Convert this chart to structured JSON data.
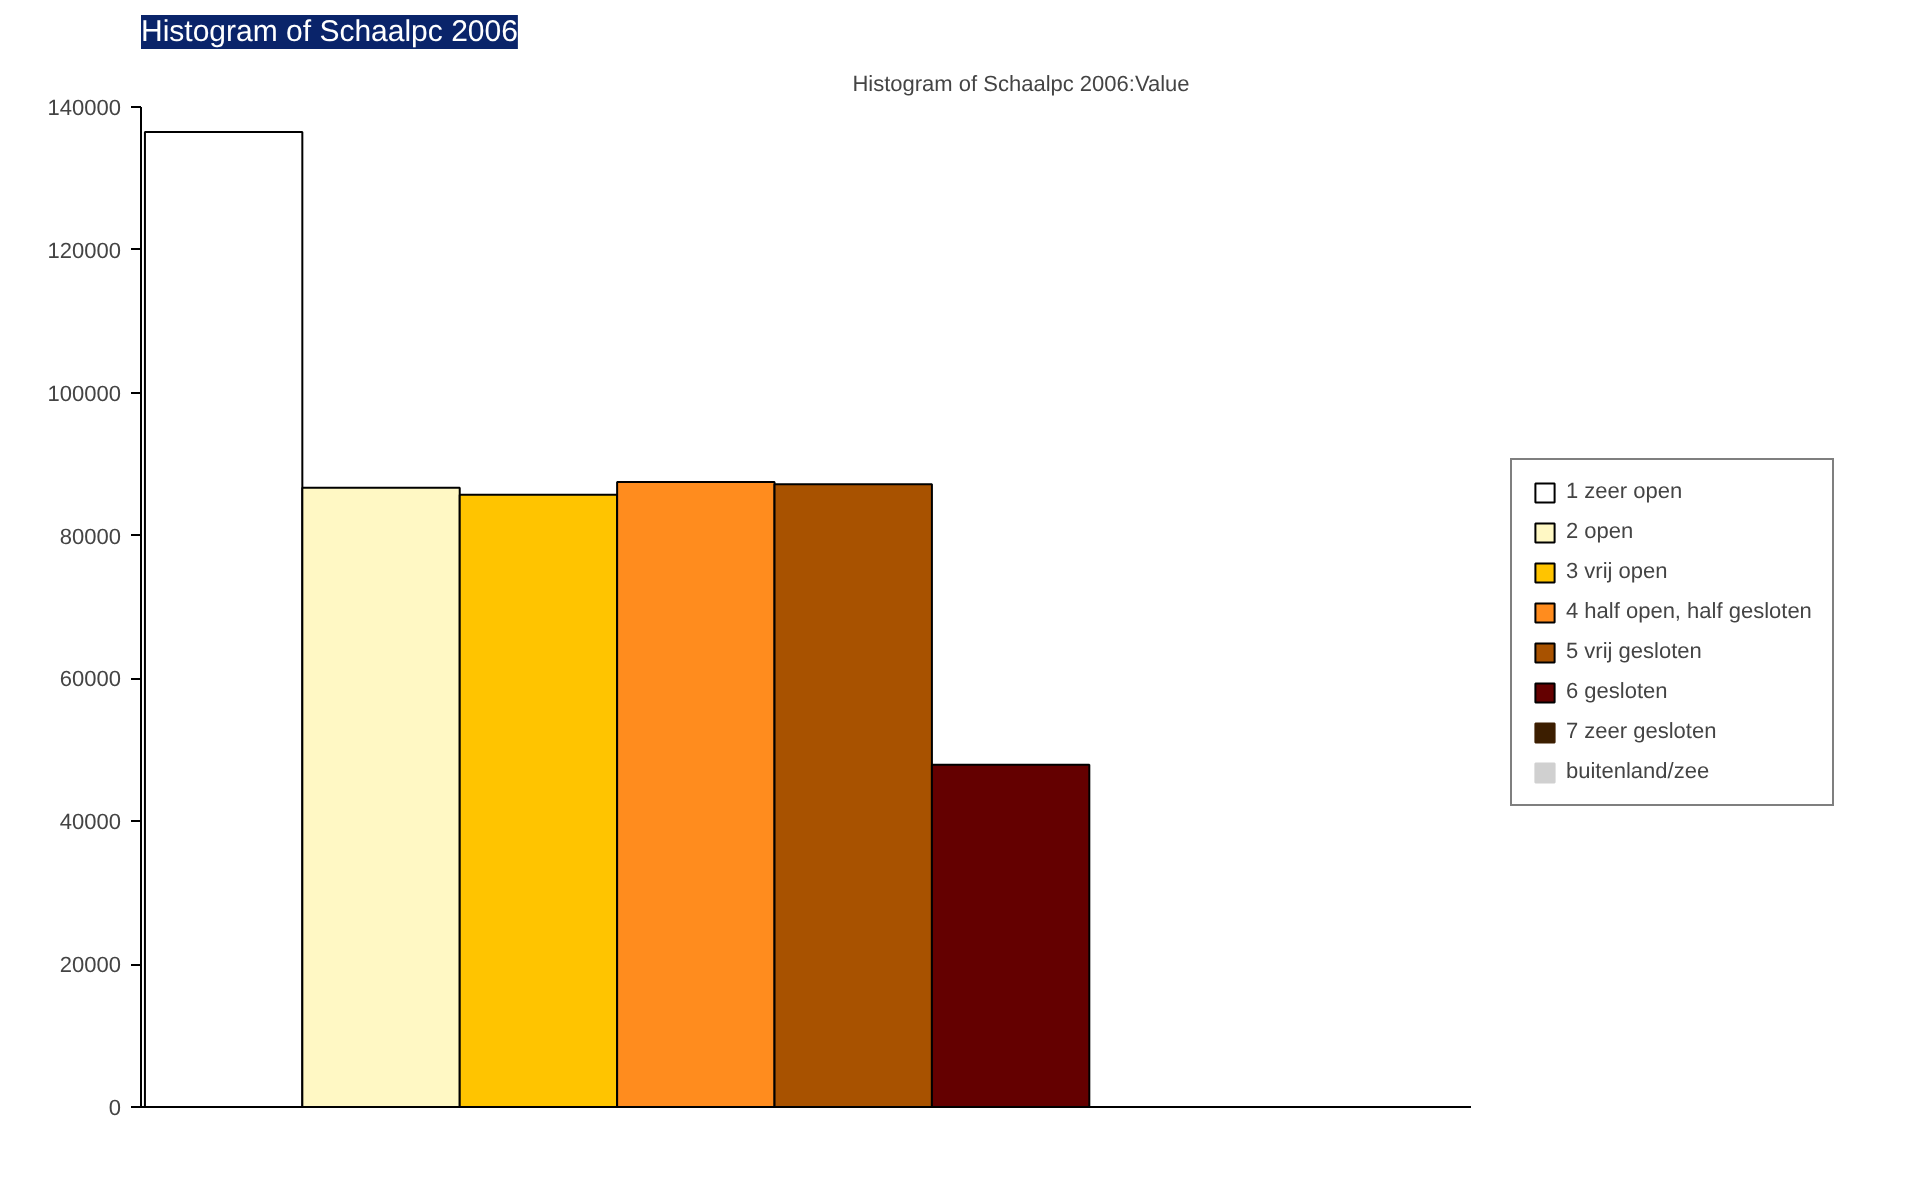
{
  "chart_data": {
    "type": "bar",
    "title": "Histogram of Schaalpc 2006",
    "subtitle": "Histogram of Schaalpc 2006:Value",
    "categories": [
      null
    ],
    "series": [
      {
        "name": "1 zeer open",
        "color": "#ffffff",
        "values": [
          136500
        ]
      },
      {
        "name": "2 open",
        "color": "#fff8c4",
        "values": [
          86700
        ]
      },
      {
        "name": "3 vrij open",
        "color": "#ffc400",
        "values": [
          85700
        ]
      },
      {
        "name": "4 half open, half gesloten",
        "color": "#ff8c1e",
        "values": [
          87500
        ]
      },
      {
        "name": "5 vrij gesloten",
        "color": "#a85200",
        "values": [
          87200
        ]
      },
      {
        "name": "6 gesloten",
        "color": "#640000",
        "values": [
          47900
        ]
      },
      {
        "name": "7 zeer gesloten",
        "color": "#3c1e00",
        "values": [
          0
        ]
      },
      {
        "name": "buitenland/zee",
        "color": "#d0d0d0",
        "values": [
          0
        ]
      }
    ],
    "ylim": [
      0,
      140000
    ],
    "yticks": [
      0,
      20000,
      40000,
      60000,
      80000,
      100000,
      120000,
      140000
    ],
    "tick_labels": "y",
    "grid": false,
    "legend": "right"
  }
}
